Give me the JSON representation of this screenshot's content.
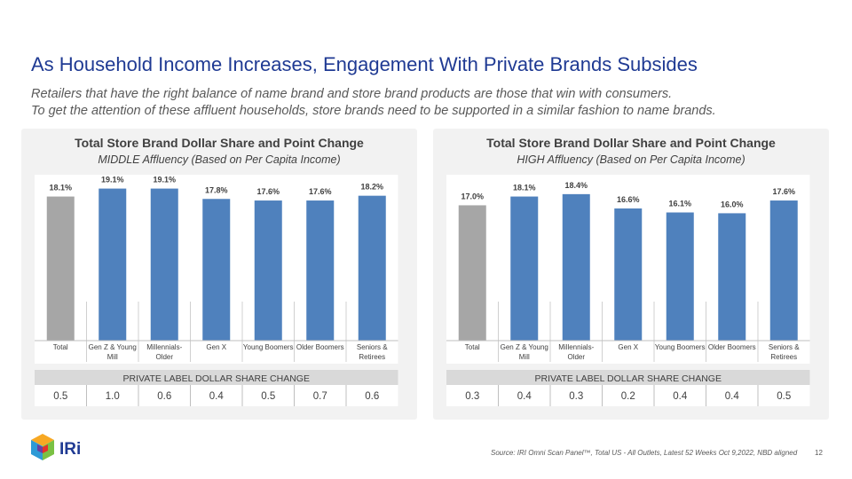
{
  "title": "As Household Income Increases, Engagement With Private Brands Subsides",
  "subtitle_line1": "Retailers that have the right balance of name brand and store brand products are those that win with consumers.",
  "subtitle_line2": "To get the attention of these affluent households, store brands need to be supported in a similar fashion to name brands.",
  "colors": {
    "total_bar": "#a6a6a6",
    "segment_bar": "#4f81bd",
    "title_blue": "#1f3a93"
  },
  "chart_data": [
    {
      "type": "bar",
      "title": "Total Store Brand Dollar Share and Point Change",
      "subtitle": "MIDDLE Affluency (Based on Per Capita Income)",
      "categories": [
        [
          "Total"
        ],
        [
          "Gen Z & Young",
          "Mill"
        ],
        [
          "Millennials-",
          "Older"
        ],
        [
          "Gen X"
        ],
        [
          "Young Boomers"
        ],
        [
          "Older Boomers"
        ],
        [
          "Seniors &",
          "Retirees"
        ]
      ],
      "values": [
        18.1,
        19.1,
        19.1,
        17.8,
        17.6,
        17.6,
        18.2
      ],
      "value_labels": [
        "18.1%",
        "19.1%",
        "19.1%",
        "17.8%",
        "17.6%",
        "17.6%",
        "18.2%"
      ],
      "ylim": [
        0,
        19.5
      ],
      "table_header": "PRIVATE LABEL DOLLAR SHARE CHANGE",
      "table_values": [
        "0.5",
        "1.0",
        "0.6",
        "0.4",
        "0.5",
        "0.7",
        "0.6"
      ]
    },
    {
      "type": "bar",
      "title": "Total Store Brand Dollar Share and Point Change",
      "subtitle": "HIGH Affluency (Based on Per Capita Income)",
      "categories": [
        [
          "Total"
        ],
        [
          "Gen Z & Young",
          "Mill"
        ],
        [
          "Millennials-",
          "Older"
        ],
        [
          "Gen X"
        ],
        [
          "Young Boomers"
        ],
        [
          "Older Boomers"
        ],
        [
          "Seniors &",
          "Retirees"
        ]
      ],
      "values": [
        17.0,
        18.1,
        18.4,
        16.6,
        16.1,
        16.0,
        17.6
      ],
      "value_labels": [
        "17.0%",
        "18.1%",
        "18.4%",
        "16.6%",
        "16.1%",
        "16.0%",
        "17.6%"
      ],
      "ylim": [
        0,
        19.5
      ],
      "table_header": "PRIVATE LABEL DOLLAR SHARE CHANGE",
      "table_values": [
        "0.3",
        "0.4",
        "0.3",
        "0.2",
        "0.4",
        "0.4",
        "0.5"
      ]
    }
  ],
  "logo_text": "IRi",
  "source": "Source: IRI Omni Scan Panel™, Total US - All Outlets, Latest 52 Weeks Oct 9,2022, NBD aligned",
  "page_number": "12"
}
